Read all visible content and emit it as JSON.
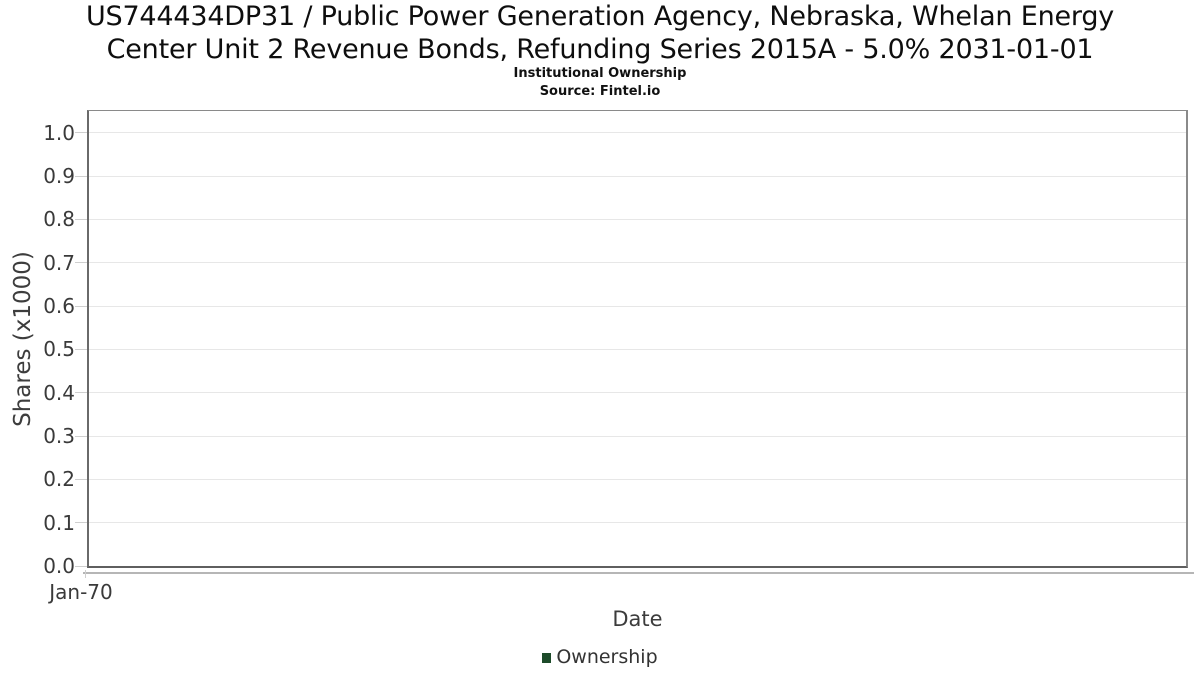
{
  "chart_data": {
    "type": "line",
    "title": "US744434DP31 / Public Power Generation Agency, Nebraska, Whelan Energy Center Unit 2 Revenue Bonds, Refunding Series 2015A - 5.0% 2031-01-01",
    "title_lines": [
      "US744434DP31 / Public Power Generation Agency, Nebraska, Whelan Energy",
      "Center Unit 2 Revenue Bonds, Refunding Series 2015A - 5.0% 2031-01-01"
    ],
    "subtitle": "Institutional Ownership",
    "source": "Source: Fintel.io",
    "xlabel": "Date",
    "ylabel": "Shares (x1000)",
    "x_tick_labels": [
      "Jan-70"
    ],
    "y_ticks": [
      0.0,
      0.1,
      0.2,
      0.3,
      0.4,
      0.5,
      0.6,
      0.7,
      0.8,
      0.9,
      1.0
    ],
    "y_tick_labels": [
      "0.0",
      "0.1",
      "0.2",
      "0.3",
      "0.4",
      "0.5",
      "0.6",
      "0.7",
      "0.8",
      "0.9",
      "1.0"
    ],
    "ylim": [
      0,
      1.05
    ],
    "xlim_labels": [
      "Jan-70"
    ],
    "grid": "horizontal-only",
    "legend": {
      "position": "bottom-center",
      "entries": [
        {
          "label": "Ownership",
          "color": "#1d4b2a"
        }
      ]
    },
    "series": [
      {
        "name": "Ownership",
        "color": "#1d4b2a",
        "points": []
      }
    ],
    "colors": {
      "background": "#ffffff",
      "plot_border": "#8a8a8a",
      "gridline": "#e7e7e7",
      "tick_mark": "#cfcfcf",
      "text_primary": "#0e0e0e",
      "text_axis": "#3a3a3a",
      "legend_swatch": "#1d4b2a",
      "sub_axis_line": "#b6b6b6"
    }
  }
}
